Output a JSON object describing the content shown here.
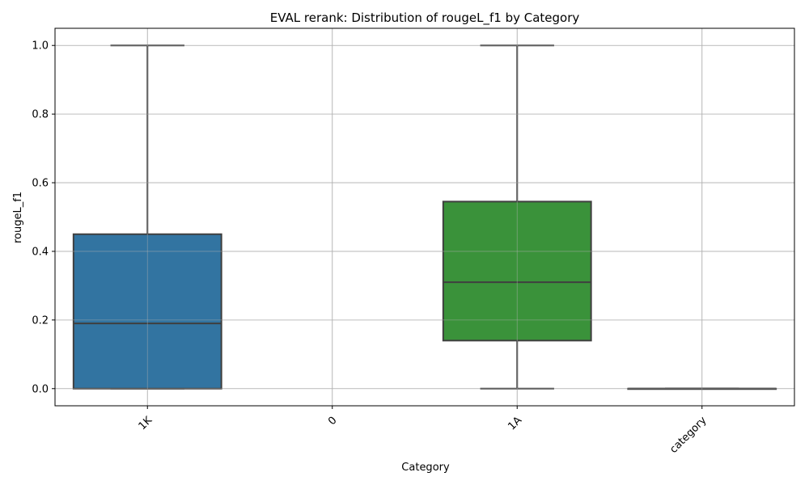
{
  "chart_data": {
    "type": "box",
    "title": "EVAL rerank: Distribution of rougeL_f1 by Category",
    "xlabel": "Category",
    "ylabel": "rougeL_f1",
    "ylim": [
      -0.05,
      1.05
    ],
    "yticks": [
      0.0,
      0.2,
      0.4,
      0.6,
      0.8,
      1.0
    ],
    "grid": true,
    "categories": [
      "1K",
      "0",
      "1A",
      "category"
    ],
    "boxes": [
      {
        "category": "1K",
        "whisker_low": 0.0,
        "q1": 0.0,
        "median": 0.19,
        "q3": 0.45,
        "whisker_high": 1.0,
        "color": "#3274a1"
      },
      {
        "category": "0",
        "empty": true
      },
      {
        "category": "1A",
        "whisker_low": 0.0,
        "q1": 0.14,
        "median": 0.31,
        "q3": 0.545,
        "whisker_high": 1.0,
        "color": "#3a923a"
      },
      {
        "category": "category",
        "whisker_low": 0.0,
        "q1": 0.0,
        "median": 0.0,
        "q3": 0.0,
        "whisker_high": 0.0,
        "color": "#c03d3e"
      }
    ]
  }
}
